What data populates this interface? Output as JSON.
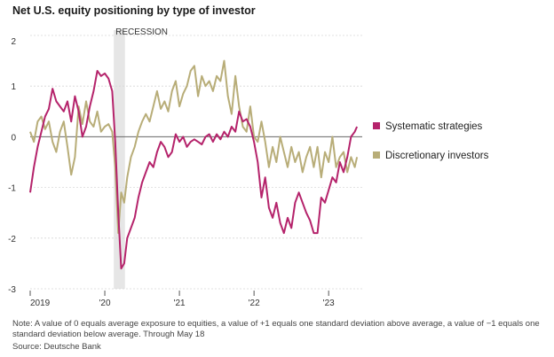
{
  "title": "Net U.S. equity positioning by type of investor",
  "note": "Note: A value of 0 equals average exposure to equities, a value of +1 equals one standard deviation above average, a value of −1 equals one standard deviation below average. Through May 18",
  "source": "Source: Deutsche Bank",
  "colors": {
    "systematic": "#b5236b",
    "discretionary": "#b8ad78",
    "recession": "#e6e6e6",
    "grid": "#d8d8d8",
    "zero": "#666666"
  },
  "chart_data": {
    "type": "line",
    "ylim": [
      -3,
      2
    ],
    "xlim": [
      2019.0,
      2023.45
    ],
    "yticks": [
      2,
      1,
      0,
      -1,
      -2,
      -3
    ],
    "ytick_labels": [
      "2",
      "1",
      "0",
      "-1",
      "-2",
      "-3"
    ],
    "xticks": [
      2019,
      2020,
      2021,
      2022,
      2023
    ],
    "xtick_labels": [
      "2019",
      "'20",
      "'21",
      "'22",
      "'23"
    ],
    "recession": {
      "label": "RECESSION",
      "start": 2020.12,
      "end": 2020.27
    },
    "series": [
      {
        "name": "Systematic strategies",
        "x": [
          2019.0,
          2019.05,
          2019.1,
          2019.15,
          2019.2,
          2019.25,
          2019.3,
          2019.35,
          2019.4,
          2019.45,
          2019.5,
          2019.55,
          2019.6,
          2019.65,
          2019.7,
          2019.75,
          2019.8,
          2019.85,
          2019.9,
          2019.95,
          2020.0,
          2020.05,
          2020.1,
          2020.14,
          2020.18,
          2020.22,
          2020.26,
          2020.3,
          2020.35,
          2020.4,
          2020.45,
          2020.5,
          2020.55,
          2020.6,
          2020.65,
          2020.7,
          2020.75,
          2020.8,
          2020.85,
          2020.9,
          2020.95,
          2021.0,
          2021.05,
          2021.1,
          2021.15,
          2021.2,
          2021.25,
          2021.3,
          2021.35,
          2021.4,
          2021.45,
          2021.5,
          2021.55,
          2021.6,
          2021.65,
          2021.7,
          2021.75,
          2021.8,
          2021.85,
          2021.9,
          2021.95,
          2022.0,
          2022.05,
          2022.1,
          2022.15,
          2022.2,
          2022.25,
          2022.3,
          2022.35,
          2022.4,
          2022.45,
          2022.5,
          2022.55,
          2022.6,
          2022.65,
          2022.7,
          2022.75,
          2022.8,
          2022.85,
          2022.9,
          2022.95,
          2023.0,
          2023.05,
          2023.1,
          2023.15,
          2023.2,
          2023.25,
          2023.3,
          2023.35,
          2023.38
        ],
        "values": [
          -1.1,
          -0.6,
          -0.2,
          0.1,
          0.4,
          0.55,
          0.95,
          0.7,
          0.6,
          0.5,
          0.7,
          0.3,
          0.8,
          0.5,
          0.0,
          0.2,
          0.6,
          0.9,
          1.3,
          1.2,
          1.25,
          1.15,
          0.9,
          -0.1,
          -1.5,
          -2.6,
          -2.5,
          -2.0,
          -1.8,
          -1.6,
          -1.2,
          -0.9,
          -0.7,
          -0.5,
          -0.6,
          -0.3,
          -0.1,
          -0.2,
          -0.4,
          -0.3,
          0.05,
          -0.1,
          0.0,
          -0.2,
          -0.1,
          -0.05,
          -0.1,
          -0.15,
          0.0,
          0.05,
          -0.1,
          0.05,
          -0.05,
          0.1,
          0.0,
          0.2,
          0.1,
          0.5,
          0.3,
          0.35,
          0.2,
          -0.1,
          -0.5,
          -1.2,
          -0.8,
          -1.4,
          -1.6,
          -1.3,
          -1.7,
          -1.9,
          -1.6,
          -1.8,
          -1.3,
          -1.1,
          -1.3,
          -1.5,
          -1.65,
          -1.9,
          -1.9,
          -1.2,
          -1.3,
          -1.05,
          -0.8,
          -0.9,
          -0.5,
          -0.7,
          -0.4,
          0.0,
          0.1,
          0.2
        ]
      },
      {
        "name": "Discretionary investors",
        "x": [
          2019.0,
          2019.05,
          2019.1,
          2019.15,
          2019.2,
          2019.25,
          2019.3,
          2019.35,
          2019.4,
          2019.45,
          2019.5,
          2019.55,
          2019.6,
          2019.65,
          2019.7,
          2019.75,
          2019.8,
          2019.85,
          2019.9,
          2019.95,
          2020.0,
          2020.05,
          2020.1,
          2020.14,
          2020.18,
          2020.22,
          2020.26,
          2020.3,
          2020.35,
          2020.4,
          2020.45,
          2020.5,
          2020.55,
          2020.6,
          2020.65,
          2020.7,
          2020.75,
          2020.8,
          2020.85,
          2020.9,
          2020.95,
          2021.0,
          2021.05,
          2021.1,
          2021.15,
          2021.2,
          2021.25,
          2021.3,
          2021.35,
          2021.4,
          2021.45,
          2021.5,
          2021.55,
          2021.6,
          2021.65,
          2021.7,
          2021.75,
          2021.8,
          2021.85,
          2021.9,
          2021.95,
          2022.0,
          2022.05,
          2022.1,
          2022.15,
          2022.2,
          2022.25,
          2022.3,
          2022.35,
          2022.4,
          2022.45,
          2022.5,
          2022.55,
          2022.6,
          2022.65,
          2022.7,
          2022.75,
          2022.8,
          2022.85,
          2022.9,
          2022.95,
          2023.0,
          2023.05,
          2023.1,
          2023.15,
          2023.2,
          2023.25,
          2023.3,
          2023.35,
          2023.38
        ],
        "values": [
          0.1,
          -0.1,
          0.3,
          0.4,
          0.15,
          0.3,
          -0.1,
          -0.3,
          0.1,
          0.3,
          -0.2,
          -0.75,
          -0.4,
          0.6,
          0.25,
          0.7,
          0.3,
          0.2,
          0.5,
          0.1,
          0.2,
          0.25,
          0.1,
          -0.6,
          -1.9,
          -1.1,
          -1.3,
          -0.8,
          -0.4,
          -0.2,
          0.1,
          0.3,
          0.45,
          0.3,
          0.6,
          0.9,
          0.55,
          0.7,
          0.5,
          0.9,
          1.1,
          0.6,
          0.85,
          1.0,
          1.3,
          1.4,
          0.8,
          1.2,
          1.0,
          1.1,
          0.9,
          1.2,
          1.1,
          1.5,
          0.8,
          0.45,
          1.2,
          0.6,
          0.2,
          0.1,
          0.6,
          0.0,
          -0.1,
          0.3,
          -0.1,
          -0.6,
          -0.2,
          -0.5,
          0.0,
          -0.3,
          -0.6,
          -0.2,
          -0.5,
          -0.3,
          -0.7,
          -0.4,
          -0.2,
          -0.6,
          -0.2,
          -0.8,
          -0.3,
          -0.5,
          0.0,
          -0.6,
          -0.4,
          -0.3,
          -0.7,
          -0.4,
          -0.6,
          -0.4
        ]
      }
    ]
  }
}
